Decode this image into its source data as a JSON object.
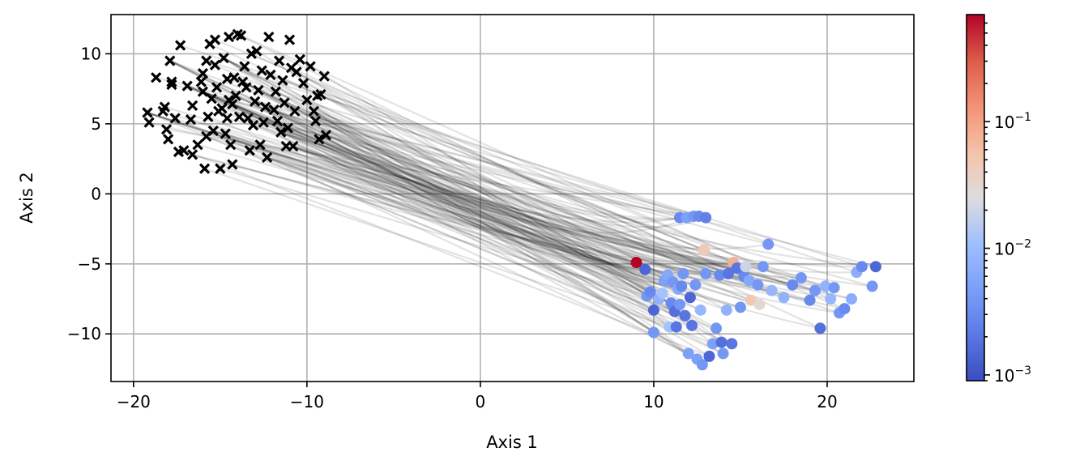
{
  "chart_data": {
    "type": "scatter",
    "xlabel": "Axis 1",
    "ylabel": "Axis 2",
    "xlim": [
      -21.3,
      25.0
    ],
    "ylim": [
      -13.4,
      12.8
    ],
    "x_ticks": [
      -20,
      -10,
      0,
      10,
      20
    ],
    "y_ticks": [
      -10,
      -5,
      0,
      5,
      10
    ],
    "x_tick_labels": [
      "−20",
      "−10",
      "0",
      "10",
      "20"
    ],
    "y_tick_labels": [
      "−10",
      "−5",
      "0",
      "5",
      "10"
    ],
    "grid": true,
    "colorbar": {
      "scale": "log",
      "colormap": "coolwarm",
      "range": [
        0.0009,
        0.7
      ],
      "ticks": [
        0.001,
        0.01,
        0.1
      ],
      "tick_labels": [
        {
          "base": "10",
          "exp": "−3"
        },
        {
          "base": "10",
          "exp": "−2"
        },
        {
          "base": "10",
          "exp": "−1"
        }
      ]
    },
    "colors": {
      "start_marker": "#000000",
      "trajectory": "#000000",
      "grid": "#b0b0b0",
      "cmap_low": "#3b4cc0",
      "cmap_mid": "#dddddd",
      "cmap_high": "#b40426"
    },
    "series": [
      {
        "marker": "x",
        "points": [
          [
            -19.2,
            5.8
          ],
          [
            -19.1,
            5.1
          ],
          [
            -18.7,
            8.3
          ],
          [
            -18.3,
            5.9
          ],
          [
            -18.2,
            6.2
          ],
          [
            -18.1,
            4.6
          ],
          [
            -18.0,
            3.9
          ],
          [
            -17.9,
            9.5
          ],
          [
            -17.8,
            7.8
          ],
          [
            -17.8,
            8.0
          ],
          [
            -17.6,
            5.4
          ],
          [
            -17.4,
            3.0
          ],
          [
            -17.3,
            10.6
          ],
          [
            -17.1,
            3.1
          ],
          [
            -16.9,
            7.7
          ],
          [
            -16.7,
            5.3
          ],
          [
            -16.6,
            2.8
          ],
          [
            -16.6,
            6.3
          ],
          [
            -16.3,
            3.5
          ],
          [
            -16.1,
            8.0
          ],
          [
            -16.0,
            8.6
          ],
          [
            -16.0,
            7.3
          ],
          [
            -15.9,
            1.8
          ],
          [
            -15.8,
            9.5
          ],
          [
            -15.8,
            4.1
          ],
          [
            -15.7,
            5.5
          ],
          [
            -15.6,
            10.7
          ],
          [
            -15.5,
            6.8
          ],
          [
            -15.4,
            4.5
          ],
          [
            -15.3,
            11.0
          ],
          [
            -15.3,
            9.2
          ],
          [
            -15.2,
            7.6
          ],
          [
            -15.1,
            5.9
          ],
          [
            -15.0,
            1.8
          ],
          [
            -14.9,
            6.1
          ],
          [
            -14.8,
            9.7
          ],
          [
            -14.7,
            4.3
          ],
          [
            -14.6,
            5.4
          ],
          [
            -14.6,
            8.2
          ],
          [
            -14.5,
            11.2
          ],
          [
            -14.5,
            6.7
          ],
          [
            -14.4,
            3.5
          ],
          [
            -14.3,
            6.4
          ],
          [
            -14.3,
            2.1
          ],
          [
            -14.2,
            8.3
          ],
          [
            -14.1,
            7.0
          ],
          [
            -14.0,
            11.4
          ],
          [
            -13.9,
            5.5
          ],
          [
            -13.8,
            11.3
          ],
          [
            -13.7,
            8.0
          ],
          [
            -13.6,
            9.1
          ],
          [
            -13.5,
            7.6
          ],
          [
            -13.4,
            5.4
          ],
          [
            -13.3,
            3.1
          ],
          [
            -13.2,
            10.0
          ],
          [
            -13.1,
            4.9
          ],
          [
            -13.0,
            6.6
          ],
          [
            -12.9,
            10.2
          ],
          [
            -12.8,
            7.4
          ],
          [
            -12.7,
            3.5
          ],
          [
            -12.6,
            8.8
          ],
          [
            -12.5,
            5.1
          ],
          [
            -12.4,
            6.2
          ],
          [
            -12.3,
            2.6
          ],
          [
            -12.2,
            11.2
          ],
          [
            -12.1,
            8.5
          ],
          [
            -11.9,
            6.0
          ],
          [
            -11.8,
            7.3
          ],
          [
            -11.7,
            5.2
          ],
          [
            -11.6,
            9.5
          ],
          [
            -11.5,
            4.4
          ],
          [
            -11.4,
            8.1
          ],
          [
            -11.3,
            6.5
          ],
          [
            -11.2,
            3.4
          ],
          [
            -11.1,
            4.7
          ],
          [
            -11.0,
            11.0
          ],
          [
            -10.9,
            9.0
          ],
          [
            -10.8,
            3.4
          ],
          [
            -10.7,
            5.9
          ],
          [
            -10.6,
            8.7
          ],
          [
            -10.4,
            9.6
          ],
          [
            -10.2,
            7.9
          ],
          [
            -10.0,
            6.7
          ],
          [
            -9.8,
            9.1
          ],
          [
            -9.6,
            5.9
          ],
          [
            -9.5,
            5.2
          ],
          [
            -9.4,
            7.0
          ],
          [
            -9.3,
            3.9
          ],
          [
            -9.2,
            7.1
          ],
          [
            -9.0,
            8.4
          ],
          [
            -8.9,
            4.2
          ]
        ]
      },
      {
        "marker": "o",
        "points": [
          [
            9.0,
            -4.9,
            0.7
          ],
          [
            9.5,
            -5.4,
            0.0015
          ],
          [
            9.6,
            -7.3,
            0.004
          ],
          [
            9.8,
            -7.0,
            0.003
          ],
          [
            10.0,
            -8.3,
            0.0015
          ],
          [
            10.0,
            -9.9,
            0.004
          ],
          [
            10.3,
            -7.5,
            0.008
          ],
          [
            10.5,
            -7.1,
            0.012
          ],
          [
            10.6,
            -6.2,
            0.005
          ],
          [
            10.8,
            -5.8,
            0.006
          ],
          [
            10.9,
            -9.5,
            0.012
          ],
          [
            11.0,
            -7.8,
            0.003
          ],
          [
            11.1,
            -6.3,
            0.004
          ],
          [
            11.2,
            -8.4,
            0.0018
          ],
          [
            11.3,
            -9.5,
            0.002
          ],
          [
            11.4,
            -6.8,
            0.006
          ],
          [
            11.5,
            -7.9,
            0.004
          ],
          [
            11.5,
            -1.7,
            0.003
          ],
          [
            11.6,
            -6.6,
            0.003
          ],
          [
            11.7,
            -5.7,
            0.004
          ],
          [
            11.8,
            -8.7,
            0.002
          ],
          [
            11.9,
            -1.7,
            0.005
          ],
          [
            12.0,
            -11.4,
            0.005
          ],
          [
            12.1,
            -7.4,
            0.0015
          ],
          [
            12.2,
            -9.4,
            0.002
          ],
          [
            12.3,
            -1.6,
            0.004
          ],
          [
            12.4,
            -6.5,
            0.004
          ],
          [
            12.5,
            -11.8,
            0.005
          ],
          [
            12.6,
            -1.6,
            0.003
          ],
          [
            12.7,
            -8.3,
            0.009
          ],
          [
            12.8,
            -12.2,
            0.004
          ],
          [
            12.9,
            -4.0,
            0.05
          ],
          [
            13.0,
            -5.7,
            0.004
          ],
          [
            13.0,
            -1.7,
            0.0025
          ],
          [
            13.2,
            -11.6,
            0.0015
          ],
          [
            13.4,
            -10.7,
            0.005
          ],
          [
            13.6,
            -9.6,
            0.004
          ],
          [
            13.8,
            -5.8,
            0.003
          ],
          [
            13.9,
            -10.6,
            0.0018
          ],
          [
            14.0,
            -11.4,
            0.004
          ],
          [
            14.2,
            -8.3,
            0.008
          ],
          [
            14.3,
            -5.7,
            0.002
          ],
          [
            14.5,
            -10.7,
            0.002
          ],
          [
            14.6,
            -4.9,
            0.08
          ],
          [
            14.8,
            -5.3,
            0.002
          ],
          [
            15.0,
            -8.1,
            0.004
          ],
          [
            15.2,
            -5.9,
            0.003
          ],
          [
            15.3,
            -5.2,
            0.02
          ],
          [
            15.5,
            -6.2,
            0.006
          ],
          [
            15.6,
            -7.6,
            0.05
          ],
          [
            16.0,
            -6.5,
            0.004
          ],
          [
            16.1,
            -7.9,
            0.03
          ],
          [
            16.3,
            -5.2,
            0.004
          ],
          [
            16.6,
            -3.6,
            0.004
          ],
          [
            16.8,
            -6.9,
            0.009
          ],
          [
            17.5,
            -7.4,
            0.008
          ],
          [
            18.0,
            -6.5,
            0.003
          ],
          [
            18.5,
            -6.0,
            0.004
          ],
          [
            19.0,
            -7.6,
            0.003
          ],
          [
            19.3,
            -6.9,
            0.004
          ],
          [
            19.6,
            -9.6,
            0.0018
          ],
          [
            19.9,
            -6.6,
            0.008
          ],
          [
            20.2,
            -7.5,
            0.009
          ],
          [
            20.4,
            -6.7,
            0.004
          ],
          [
            20.7,
            -8.5,
            0.004
          ],
          [
            21.0,
            -8.2,
            0.003
          ],
          [
            21.4,
            -7.5,
            0.007
          ],
          [
            21.7,
            -5.6,
            0.007
          ],
          [
            22.0,
            -5.2,
            0.003
          ],
          [
            22.6,
            -6.6,
            0.004
          ],
          [
            22.8,
            -5.2,
            0.0015
          ]
        ]
      }
    ]
  }
}
